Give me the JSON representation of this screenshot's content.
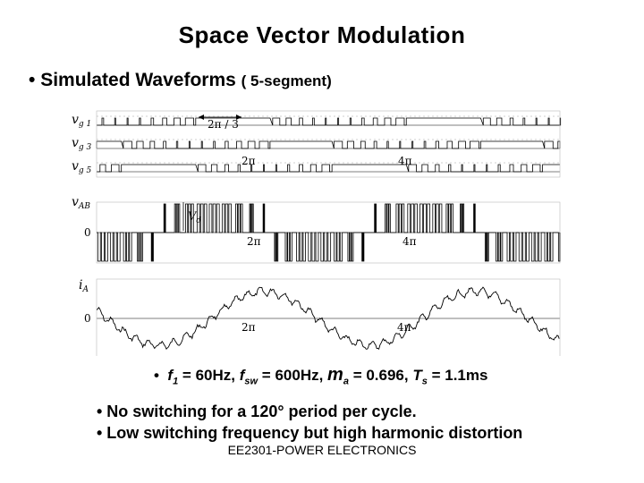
{
  "slide": {
    "title": "Space Vector Modulation",
    "subtitle_bullet": "•",
    "subtitle_main": "Simulated Waveforms",
    "subtitle_paren": "( 5-segment)",
    "params": {
      "bullet": "•",
      "f1_sym": "f",
      "f1_sub": "1",
      "f1_val": " = 60Hz, ",
      "fsw_sym": "f",
      "fsw_sub": "sw",
      "fsw_val": " = 600Hz, ",
      "ma_sym": "m",
      "ma_sub": "a",
      "ma_val": " = 0.696, ",
      "ts_sym": "T",
      "ts_sub": "s",
      "ts_val": " = 1.1ms"
    },
    "notes": [
      "• No switching for a 120° period per cycle.",
      "• Low switching frequency but high harmonic distortion"
    ],
    "footer": "EE2301-POWER ELECTRONICS"
  },
  "figure": {
    "gate_labels": [
      "v",
      "v",
      "v"
    ],
    "gate_subs": [
      "g 1",
      "g 3",
      "g 5"
    ],
    "vab_label": "v",
    "vab_sub": "AB",
    "ia_label": "i",
    "ia_sub": "A",
    "vd_label": "V",
    "vd_sub": "d",
    "zero": "0",
    "two_pi_over_3": "2π / 3",
    "two_pi": "2π",
    "four_pi": "4π"
  }
}
